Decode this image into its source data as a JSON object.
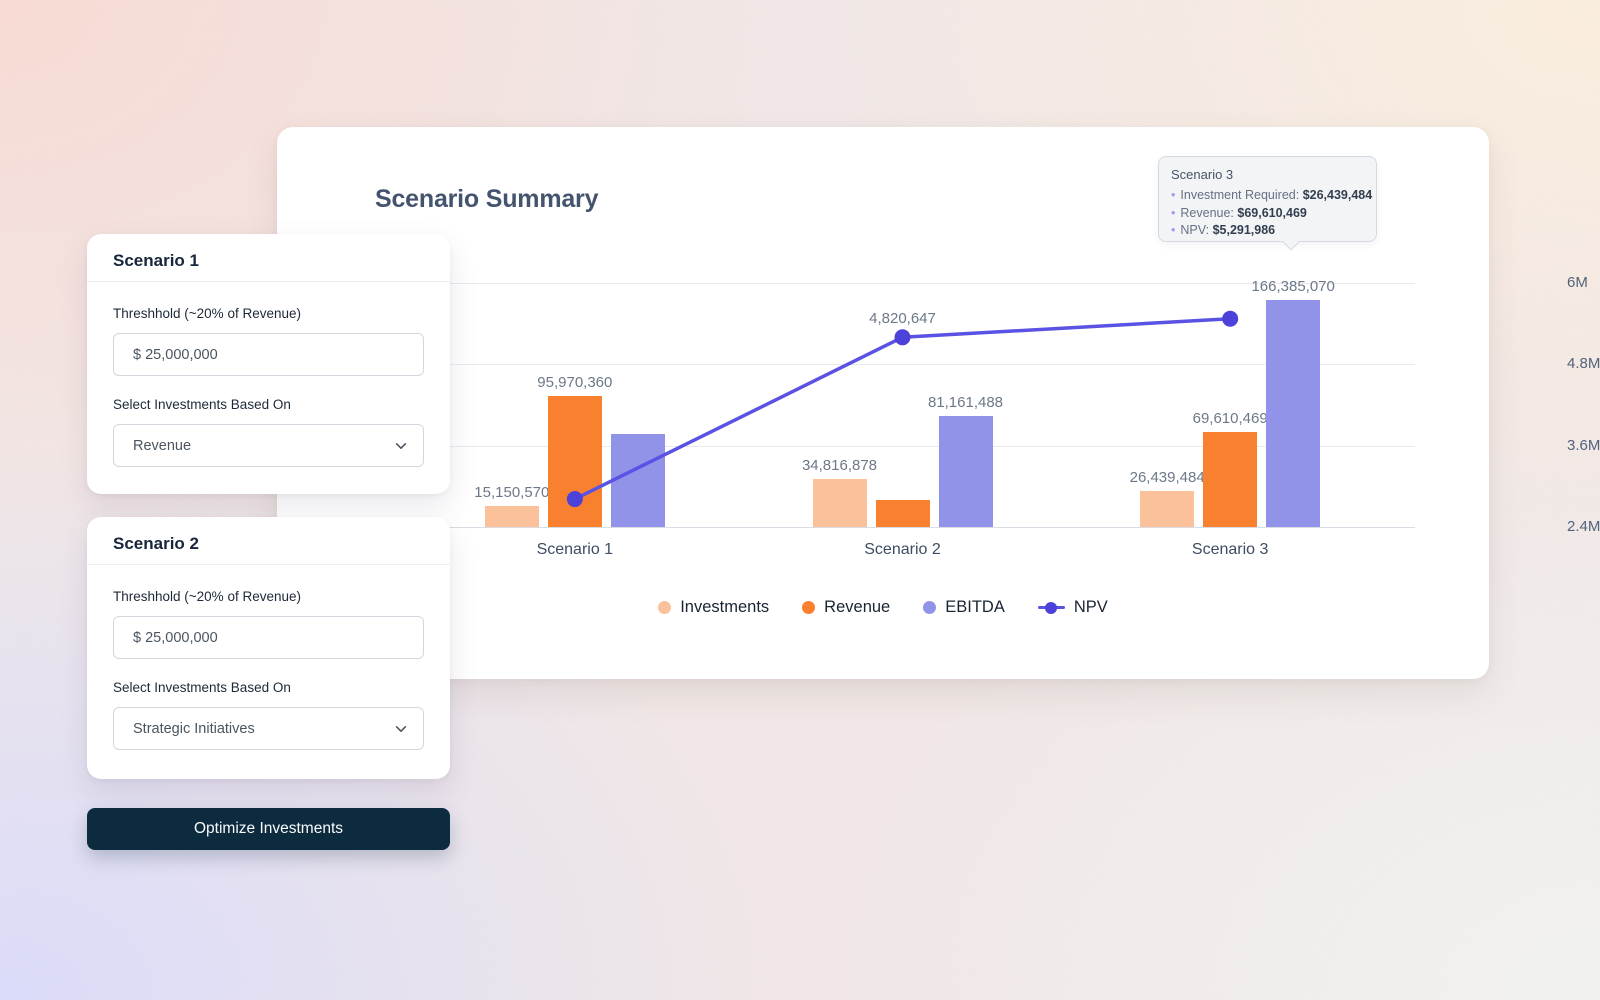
{
  "theme": {
    "colors": {
      "investments": "#FAC19B",
      "revenue": "#F8802F",
      "ebitda": "#9193E8",
      "npv_line": "#5A52E2",
      "npv_dot": "#4C42D9",
      "button_bg": "#0D2B3E",
      "card_title": "#44546E"
    },
    "background_corners": {
      "top_left": "#F8DAD3",
      "top_right": "#FBEEDE",
      "bottom_left": "#DADBFA",
      "bottom_right": "#F1F2F0"
    }
  },
  "summary": {
    "title": "Scenario Summary",
    "tooltip": {
      "title": "Scenario 3",
      "items": [
        {
          "label": "Investment Required: ",
          "value": "$26,439,484"
        },
        {
          "label": "Revenue: ",
          "value": "$69,610,469"
        },
        {
          "label": "NPV: ",
          "value": "$5,291,986"
        }
      ]
    }
  },
  "panel": {
    "scenarios": [
      {
        "title": "Scenario 1",
        "threshold_label": "Threshhold (~20% of Revenue)",
        "threshold_value": "$ 25,000,000",
        "select_label": "Select Investments Based On",
        "select_value": "Revenue"
      },
      {
        "title": "Scenario 2",
        "threshold_label": "Threshhold (~20% of Revenue)",
        "threshold_value": "$ 25,000,000",
        "select_label": "Select Investments Based On",
        "select_value": "Strategic Initiatives"
      }
    ],
    "optimize_button": "Optimize Investments"
  },
  "chart_data": {
    "type": "bar",
    "title": "Scenario Summary",
    "categories": [
      "Scenario 1",
      "Scenario 2",
      "Scenario 3"
    ],
    "series": [
      {
        "name": "Investments",
        "color": "#FAC19B",
        "values": [
          15150570,
          34816878,
          26439484
        ],
        "labels": [
          "15,150,570",
          "34,816,878",
          "26,439,484"
        ]
      },
      {
        "name": "Revenue",
        "color": "#F8802F",
        "values": [
          95970360,
          19500000,
          69610469
        ],
        "labels": [
          "95,970,360",
          null,
          "69,610,469"
        ]
      },
      {
        "name": "EBITDA",
        "color": "#9193E8",
        "values": [
          68000000,
          81161488,
          166385070
        ],
        "labels": [
          null,
          "81,161,488",
          "166,385,070"
        ]
      }
    ],
    "line_series": {
      "name": "NPV",
      "color": "#5A52E2",
      "dot_color": "#4C42D9",
      "values": [
        710000,
        4820647,
        5291986
      ],
      "labels": [
        null,
        "4,820,647",
        null
      ]
    },
    "right_axis": {
      "tick_labels": [
        "6M",
        "4.8M",
        "3.6M",
        "2.4M"
      ],
      "max": 6000000,
      "min": 2400000
    },
    "legend": [
      "Investments",
      "Revenue",
      "EBITDA",
      "NPV"
    ],
    "legend_position": "bottom",
    "grid": true
  }
}
